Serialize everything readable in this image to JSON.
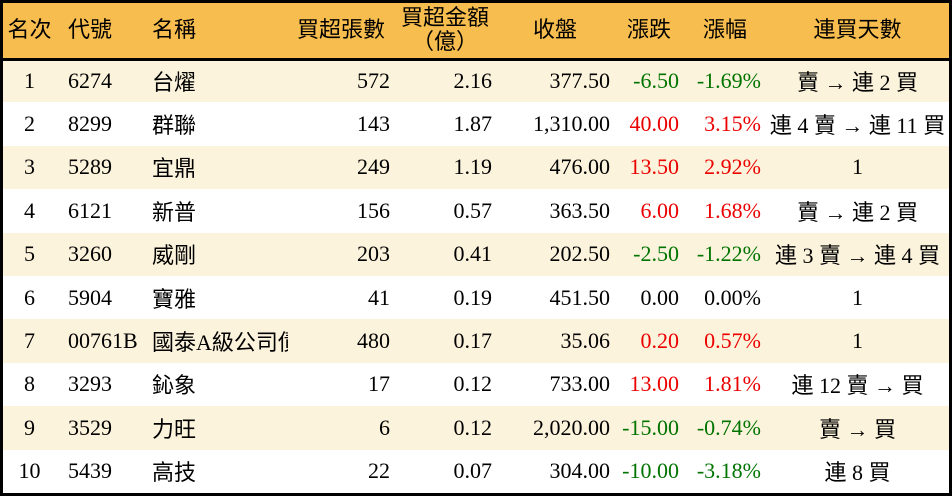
{
  "colors": {
    "up_red": "#eb0000",
    "down_green": "#007400",
    "neutral_black": "#000000",
    "header_bg": "#f7bd4e",
    "row_stripe_bg": "#fcf3dc",
    "border_black": "#000000"
  },
  "chart_data": {
    "type": "table",
    "columns": [
      {
        "id": "rank",
        "label": "名次"
      },
      {
        "id": "code",
        "label": "代號"
      },
      {
        "id": "name",
        "label": "名稱"
      },
      {
        "id": "volume",
        "label": "買超張數"
      },
      {
        "id": "amount",
        "label": "買超金額",
        "label2": "（億）"
      },
      {
        "id": "close",
        "label": "收盤"
      },
      {
        "id": "change",
        "label": "漲跌"
      },
      {
        "id": "change_pct",
        "label": "漲幅"
      },
      {
        "id": "streak",
        "label": "連買天數"
      }
    ],
    "rows": [
      {
        "rank": "1",
        "code": "6274",
        "name": "台燿",
        "volume": "572",
        "amount": "2.16",
        "close": "377.50",
        "change": "-6.50",
        "change_pct": "-1.69%",
        "trend": "down",
        "streak": "賣 → 連 2 買"
      },
      {
        "rank": "2",
        "code": "8299",
        "name": "群聯",
        "volume": "143",
        "amount": "1.87",
        "close": "1,310.00",
        "change": "40.00",
        "change_pct": "3.15%",
        "trend": "up",
        "streak": "連 4 賣 → 連 11 買"
      },
      {
        "rank": "3",
        "code": "5289",
        "name": "宜鼎",
        "volume": "249",
        "amount": "1.19",
        "close": "476.00",
        "change": "13.50",
        "change_pct": "2.92%",
        "trend": "up",
        "streak": "1"
      },
      {
        "rank": "4",
        "code": "6121",
        "name": "新普",
        "volume": "156",
        "amount": "0.57",
        "close": "363.50",
        "change": "6.00",
        "change_pct": "1.68%",
        "trend": "up",
        "streak": "賣 → 連 2 買"
      },
      {
        "rank": "5",
        "code": "3260",
        "name": "威剛",
        "volume": "203",
        "amount": "0.41",
        "close": "202.50",
        "change": "-2.50",
        "change_pct": "-1.22%",
        "trend": "down",
        "streak": "連 3 賣 → 連 4 買"
      },
      {
        "rank": "6",
        "code": "5904",
        "name": "寶雅",
        "volume": "41",
        "amount": "0.19",
        "close": "451.50",
        "change": "0.00",
        "change_pct": "0.00%",
        "trend": "flat",
        "streak": "1"
      },
      {
        "rank": "7",
        "code": "00761B",
        "name": "國泰A級公司債",
        "volume": "480",
        "amount": "0.17",
        "close": "35.06",
        "change": "0.20",
        "change_pct": "0.57%",
        "trend": "up",
        "streak": "1"
      },
      {
        "rank": "8",
        "code": "3293",
        "name": "鈊象",
        "volume": "17",
        "amount": "0.12",
        "close": "733.00",
        "change": "13.00",
        "change_pct": "1.81%",
        "trend": "up",
        "streak": "連 12 賣 → 買"
      },
      {
        "rank": "9",
        "code": "3529",
        "name": "力旺",
        "volume": "6",
        "amount": "0.12",
        "close": "2,020.00",
        "change": "-15.00",
        "change_pct": "-0.74%",
        "trend": "down",
        "streak": "賣 → 買"
      },
      {
        "rank": "10",
        "code": "5439",
        "name": "高技",
        "volume": "22",
        "amount": "0.07",
        "close": "304.00",
        "change": "-10.00",
        "change_pct": "-3.18%",
        "trend": "down",
        "streak": "連 8 買"
      }
    ]
  }
}
